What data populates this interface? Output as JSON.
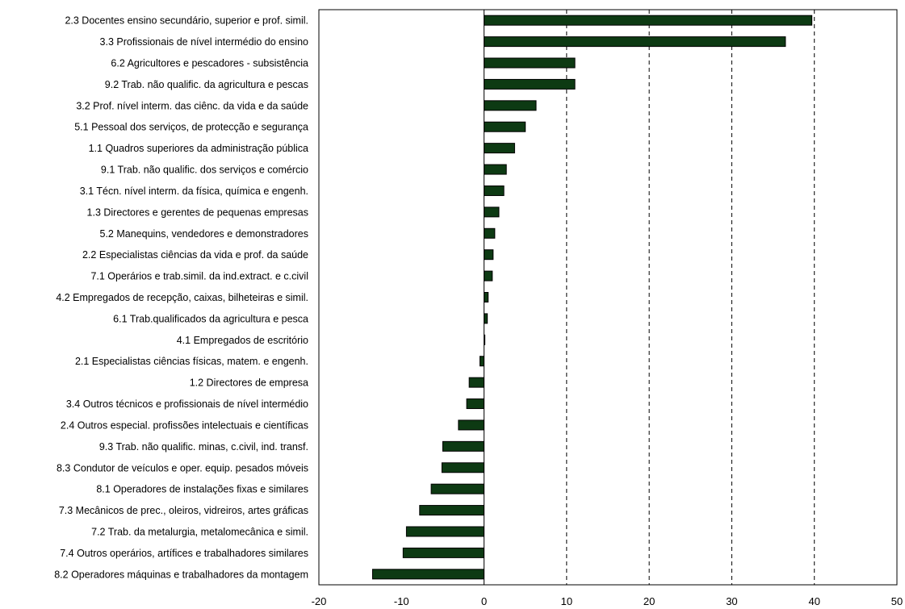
{
  "chart_data": {
    "type": "bar",
    "orientation": "horizontal",
    "title": "",
    "xlabel": "",
    "ylabel": "",
    "xlim": [
      -20,
      50
    ],
    "xticks": [
      -20,
      -10,
      0,
      10,
      20,
      30,
      40,
      50
    ],
    "grid": "vertical dashed gridlines at 10, 20, 30, 40",
    "bar_color": "#0d3a13",
    "categories": [
      "2.3  Docentes ensino secundário, superior e prof. simil.",
      "3.3  Profissionais de nível intermédio do ensino",
      "6.2  Agricultores e pescadores - subsistência",
      "9.2  Trab. não qualific. da agricultura e pescas",
      "3.2  Prof. nível interm. das ciênc. da vida e da saúde",
      "5.1  Pessoal dos serviços, de protecção e segurança",
      "1.1  Quadros superiores da administração pública",
      "9.1  Trab. não qualific. dos serviços e comércio",
      "3.1  Técn. nível interm. da física, química e  engenh.",
      "1.3  Directores e gerentes de pequenas empresas",
      "5.2  Manequins, vendedores e demonstradores",
      "2.2  Especialistas ciências da vida e prof. da saúde",
      "7.1  Operários e trab.simil. da ind.extract. e c.civil",
      "4.2  Empregados de recepção, caixas, bilheteiras e simil.",
      "6.1  Trab.qualificados da agricultura e pesca",
      "4.1  Empregados de escritório",
      "2.1  Especialistas ciências físicas, matem. e engenh.",
      "1.2  Directores de empresa",
      "3.4  Outros técnicos e profissionais de nível intermédio",
      "2.4  Outros especial. profissões intelectuais e científicas",
      "9.3  Trab. não qualific. minas, c.civil, ind. transf.",
      "8.3  Condutor de veículos e oper. equip. pesados móveis",
      "8.1  Operadores de instalações fixas e similares",
      "7.3  Mecânicos de prec., oleiros, vidreiros, artes gráficas",
      "7.2  Trab. da metalurgia, metalomecânica e simil.",
      "7.4  Outros operários, artífices e trabalhadores similares",
      "8.2  Operadores máquinas e trabalhadores da montagem"
    ],
    "values": [
      39.7,
      36.5,
      11.0,
      11.0,
      6.3,
      5.0,
      3.7,
      2.7,
      2.4,
      1.8,
      1.3,
      1.1,
      1.0,
      0.5,
      0.4,
      0.1,
      -0.5,
      -1.8,
      -2.1,
      -3.1,
      -5.0,
      -5.1,
      -6.4,
      -7.8,
      -9.4,
      -9.8,
      -13.5
    ]
  }
}
